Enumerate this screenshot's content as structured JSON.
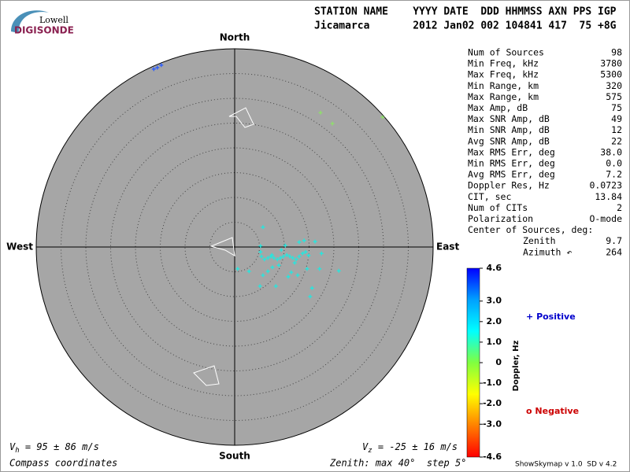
{
  "header": {
    "logo_top": "Lowell",
    "logo_bottom": "DIGISONDE",
    "row1": "STATION NAME    YYYY DATE  DDD HHMMSS AXN PPS IGP",
    "row2": "Jicamarca       2012 Jan02 002 104841 417  75 +8G"
  },
  "chart_data": {
    "type": "scatter",
    "compass": {
      "north": "North",
      "south": "South",
      "east": "East",
      "west": "West"
    },
    "xlim": [
      -40,
      40
    ],
    "ylim": [
      -40,
      40
    ],
    "rticks": [
      5,
      10,
      15,
      20,
      25,
      30,
      35
    ],
    "series": [
      {
        "color": "#2a5cff",
        "x": [
          -16.3,
          -15.6,
          -14.8
        ],
        "values": [
          35.9,
          36.2,
          36.7
        ]
      },
      {
        "color": "#8ee06a",
        "x": [
          17.3,
          19.7,
          29.8
        ],
        "values": [
          27.1,
          24.9,
          26.2
        ]
      },
      {
        "color": "#22e8e0",
        "x": [
          5.7,
          5.2,
          5.2,
          5.4,
          6.0,
          6.7,
          7.3,
          7.9,
          8.6,
          9.2,
          9.8,
          10.5,
          11.1,
          11.7,
          12.4,
          13.0,
          13.7,
          14.3,
          13.0,
          14.0,
          10.2,
          16.2,
          17.5,
          14.9,
          8.9,
          7.6,
          6.7,
          5.7,
          2.9,
          0.6,
          5.1,
          8.3,
          11.4,
          12.7,
          14.6,
          17.1,
          21.0,
          15.6,
          15.2,
          10.8,
          7.5,
          9.4,
          12.1
        ],
        "values": [
          4.0,
          0.2,
          -1.0,
          -1.9,
          -2.5,
          -2.2,
          -1.9,
          -2.2,
          -2.5,
          -2.2,
          -1.9,
          -1.6,
          -1.9,
          -2.2,
          -2.5,
          -1.9,
          -1.3,
          -1.0,
          1.0,
          1.3,
          0.3,
          1.1,
          -1.3,
          -1.7,
          -3.7,
          -4.1,
          -4.9,
          -5.7,
          -4.9,
          -4.4,
          -7.9,
          -7.9,
          -5.1,
          -5.7,
          -4.4,
          -4.4,
          -4.8,
          -8.3,
          -10.0,
          -6.0,
          -1.6,
          -0.6,
          -3.2
        ]
      }
    ]
  },
  "colorbar": {
    "title": "Doppler, Hz",
    "lim": [
      -4.6,
      4.6
    ],
    "colors": [
      "#ff0000",
      "#ff8000",
      "#ffff00",
      "#80ff40",
      "#00ffff",
      "#00a0ff",
      "#0000ff"
    ],
    "ticks": [
      {
        "value": 4.6,
        "label": "4.6"
      },
      {
        "value": 3,
        "label": "3.0"
      },
      {
        "value": 2,
        "label": "2.0"
      },
      {
        "value": 1,
        "label": "1.0"
      },
      0,
      {
        "value": -1,
        "label": "-1.0"
      },
      {
        "value": -2,
        "label": "-2.0"
      },
      {
        "value": -3,
        "label": "-3.0"
      },
      {
        "value": -4.6,
        "label": "-4.6"
      }
    ]
  },
  "legend": {
    "positive": {
      "marker": "+",
      "label": "Positive"
    },
    "negative": {
      "marker": "o",
      "label": "Negative"
    }
  },
  "stats": [
    [
      "Num of Sources",
      "98"
    ],
    [
      "Min Freq, kHz",
      "3780"
    ],
    [
      "Max Freq, kHz",
      "5300"
    ],
    [
      "Min Range, km",
      "320"
    ],
    [
      "Max Range, km",
      "575"
    ],
    [
      "Max Amp, dB",
      "75"
    ],
    [
      "Max SNR Amp, dB",
      "49"
    ],
    [
      "Min SNR Amp, dB",
      "12"
    ],
    [
      "Avg SNR Amp, dB",
      "22"
    ],
    [
      "Max RMS Err, deg",
      "38.0"
    ],
    [
      "Min RMS Err, deg",
      "0.0"
    ],
    [
      "Avg RMS Err, deg",
      "7.2"
    ],
    [
      "Doppler Res, Hz",
      "0.0723"
    ],
    [
      "CIT, sec",
      "13.84"
    ],
    [
      "Num of CITs",
      "2"
    ],
    [
      "Polarization",
      "O-mode"
    ]
  ],
  "center": {
    "title": "Center of Sources, deg:",
    "rows": [
      [
        "Zenith",
        "9.7"
      ],
      [
        "Azimuth ↶",
        "264"
      ]
    ]
  },
  "footer": {
    "vh": {
      "symbol": "V",
      "sub": "h",
      "text": " = 95 ± 86 m/s"
    },
    "vz": {
      "symbol": "V",
      "sub": "z",
      "text": " = -25 ± 16 m/s"
    },
    "coords": "Compass coordinates",
    "zenith": "Zenith: max 40°  step 5°",
    "version": "ShowSkymap v 1.0  SD v 4.2"
  }
}
